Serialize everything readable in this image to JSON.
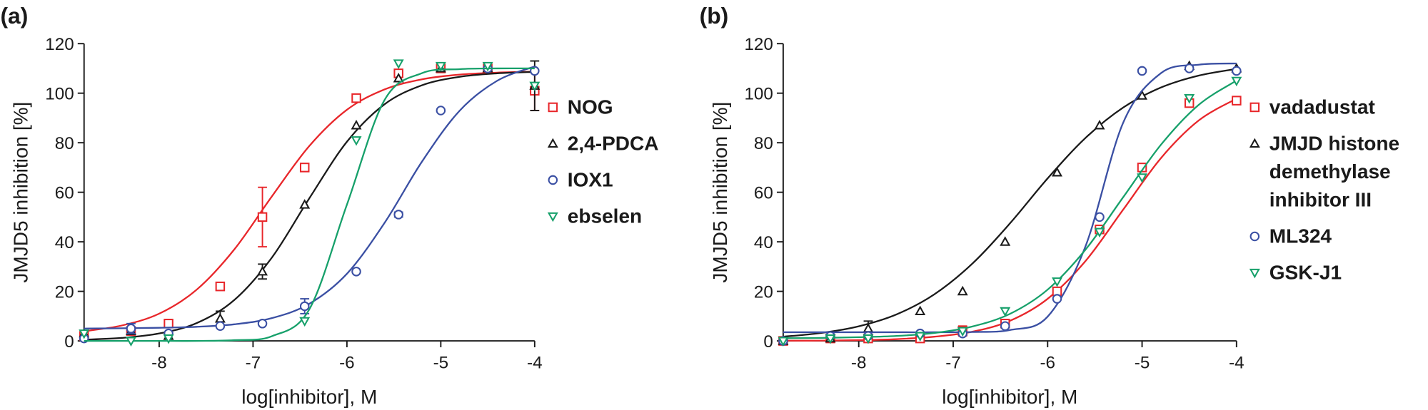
{
  "chart_data": [
    {
      "type": "scatter",
      "label": "(a)",
      "ylabel": "JMJD5 inhibition [%]",
      "xlabel": "log[inhibitor], M",
      "xlim": [
        -8.8,
        -4
      ],
      "xticks": [
        -8,
        -7,
        -6,
        -5,
        -4
      ],
      "ylim": [
        0,
        120
      ],
      "yticks": [
        0,
        20,
        40,
        60,
        80,
        100,
        120
      ],
      "legend": "right",
      "x": [
        -8.8,
        -8.3,
        -7.9,
        -7.35,
        -6.9,
        -6.45,
        -5.9,
        -5.45,
        -5.0,
        -4.5,
        -4.0
      ],
      "fit_x": [
        -8.8,
        -8.4,
        -8.0,
        -7.6,
        -7.2,
        -6.8,
        -6.4,
        -6.0,
        -5.6,
        -5.2,
        -4.8,
        -4.4,
        -4.0
      ],
      "series": [
        {
          "name": "NOG",
          "color": "#e8262a",
          "marker": "square",
          "values": [
            2,
            4,
            7,
            22,
            50,
            70,
            98,
            108,
            110,
            110,
            101
          ],
          "errors": [
            null,
            null,
            null,
            1,
            12,
            null,
            null,
            null,
            null,
            null,
            8
          ],
          "fit": [
            3.9,
            6.2,
            11.0,
            20.7,
            36.9,
            58.3,
            78.7,
            93.3,
            101.5,
            105.6,
            107.5,
            108.3,
            108.7
          ]
        },
        {
          "name": "2,4-PDCA",
          "color": "#1a1a1a",
          "marker": "triangle",
          "values": [
            3,
            4,
            2,
            9,
            28,
            55,
            87,
            106,
            110,
            110,
            103
          ],
          "errors": [
            null,
            null,
            null,
            3,
            3,
            null,
            null,
            null,
            null,
            null,
            10
          ],
          "fit": [
            0.5,
            1.2,
            3.0,
            7.2,
            16.5,
            33.6,
            57.6,
            80.4,
            95.5,
            103.2,
            106.6,
            108.0,
            108.6
          ]
        },
        {
          "name": "IOX1",
          "color": "#3a4fa3",
          "marker": "circle",
          "values": [
            1,
            5,
            3,
            6,
            7,
            14,
            28,
            51,
            93,
            110,
            109
          ],
          "errors": [
            null,
            2,
            null,
            null,
            null,
            3,
            null,
            1,
            null,
            null,
            null
          ],
          "fit": [
            5.0,
            5.1,
            5.3,
            5.7,
            6.7,
            9.2,
            15.0,
            27.1,
            47.6,
            72.4,
            92.9,
            105.0,
            110.8
          ]
        },
        {
          "name": "ebselen",
          "color": "#16a06a",
          "marker": "tridown",
          "values": [
            3,
            0,
            1,
            null,
            null,
            8,
            81,
            112,
            111,
            111,
            103
          ],
          "errors": [
            null,
            null,
            null,
            null,
            null,
            null,
            null,
            null,
            null,
            null,
            null
          ],
          "fit": [
            0,
            0,
            0,
            0,
            0.3,
            1.9,
            12.8,
            55,
            97.2,
            108.1,
            109.7,
            110,
            110
          ]
        }
      ]
    },
    {
      "type": "scatter",
      "label": "(b)",
      "ylabel": "JMJD5 inhibition [%]",
      "xlabel": "log[inhibitor], M",
      "xlim": [
        -8.8,
        -4
      ],
      "xticks": [
        -8,
        -7,
        -6,
        -5,
        -4
      ],
      "ylim": [
        0,
        120
      ],
      "yticks": [
        0,
        20,
        40,
        60,
        80,
        100,
        120
      ],
      "legend": "right",
      "x": [
        -8.8,
        -8.3,
        -7.9,
        -7.35,
        -6.9,
        -6.45,
        -5.9,
        -5.45,
        -5.0,
        -4.5,
        -4.0
      ],
      "fit_x": [
        -8.8,
        -8.4,
        -8.0,
        -7.6,
        -7.2,
        -6.8,
        -6.4,
        -6.0,
        -5.6,
        -5.2,
        -4.8,
        -4.4,
        -4.0
      ],
      "series": [
        {
          "name": "vadadustat",
          "color": "#e8262a",
          "marker": "square",
          "values": [
            0,
            1,
            1,
            1,
            4,
            7,
            20,
            45,
            70,
            96,
            97
          ],
          "errors": [
            null,
            null,
            null,
            null,
            2,
            null,
            null,
            null,
            null,
            null,
            null
          ],
          "fit": [
            0.1,
            0.1,
            0.3,
            0.7,
            1.7,
            3.7,
            8.1,
            17.0,
            32.2,
            53.0,
            73.8,
            89.0,
            97.8
          ]
        },
        {
          "name": "JMJD histone demethylase inhibitor III",
          "color": "#1a1a1a",
          "marker": "triangle",
          "values": [
            0,
            1,
            5,
            12,
            20,
            40,
            68,
            87,
            99,
            111,
            110
          ],
          "errors": [
            null,
            null,
            3,
            null,
            null,
            null,
            null,
            null,
            null,
            null,
            null
          ],
          "fit": [
            1.7,
            3.2,
            5.9,
            10.7,
            18.8,
            31.1,
            47.4,
            65.6,
            81.9,
            94.2,
            102.3,
            107.1,
            109.8
          ]
        },
        {
          "name": "ML324",
          "color": "#3a4fa3",
          "marker": "circle",
          "values": [
            0,
            2,
            2,
            3,
            3,
            6,
            17,
            50,
            109,
            110,
            109
          ],
          "errors": [
            null,
            null,
            null,
            null,
            null,
            null,
            null,
            null,
            null,
            null,
            null
          ],
          "fit": [
            3.5,
            3.5,
            3.5,
            3.5,
            3.5,
            3.6,
            4.4,
            9.8,
            38.1,
            88.1,
            108.1,
            111.5,
            112.0
          ]
        },
        {
          "name": "GSK-J1",
          "color": "#16a06a",
          "marker": "tridown",
          "values": [
            0,
            1,
            1,
            2,
            4,
            12,
            24,
            44,
            66,
            98,
            105
          ],
          "errors": [
            null,
            null,
            null,
            null,
            null,
            null,
            null,
            null,
            null,
            null,
            null
          ],
          "fit": [
            1.1,
            1.2,
            1.5,
            2.0,
            3.2,
            5.8,
            10.9,
            20.7,
            36.8,
            58.0,
            79.2,
            95.3,
            105.1
          ]
        }
      ]
    }
  ]
}
